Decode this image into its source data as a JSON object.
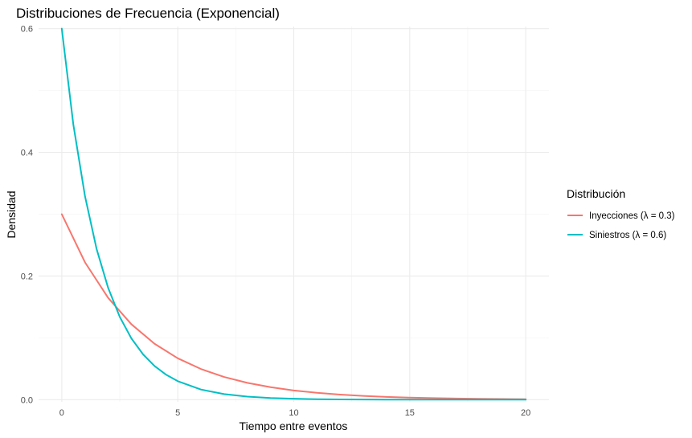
{
  "chart_data": {
    "type": "line",
    "title": "Distribuciones de Frecuencia (Exponencial)",
    "xlabel": "Tiempo entre eventos",
    "ylabel": "Densidad",
    "xlim": [
      -1,
      21
    ],
    "ylim": [
      -0.0035,
      0.6035
    ],
    "x_ticks": [
      0,
      5,
      10,
      15,
      20
    ],
    "x_tick_labels": [
      "0",
      "5",
      "10",
      "15",
      "20"
    ],
    "y_ticks": [
      0.0,
      0.2,
      0.4,
      0.6
    ],
    "y_tick_labels": [
      "0.0",
      "0.2",
      "0.4",
      "0.6"
    ],
    "grid": true,
    "legend": {
      "title": "Distribución",
      "placement": "right"
    },
    "series": [
      {
        "name": "Inyecciones (λ = 0.3)",
        "color": "#F8766D",
        "x": [
          0,
          1,
          2,
          3,
          4,
          5,
          6,
          7,
          8,
          9,
          10,
          11,
          12,
          13,
          14,
          15,
          16,
          17,
          18,
          19,
          20
        ],
        "y": [
          0.3,
          0.2222,
          0.1646,
          0.122,
          0.0904,
          0.0669,
          0.0496,
          0.0367,
          0.0272,
          0.0202,
          0.0149,
          0.0111,
          0.0082,
          0.0061,
          0.0045,
          0.0033,
          0.0025,
          0.0018,
          0.0014,
          0.001,
          0.0007
        ]
      },
      {
        "name": "Siniestros (λ = 0.6)",
        "color": "#00BFC4",
        "x": [
          0,
          0.5,
          1,
          1.5,
          2,
          2.5,
          3,
          3.5,
          4,
          4.5,
          5,
          6,
          7,
          8,
          9,
          10,
          11,
          12,
          13,
          14,
          15,
          16,
          17,
          18,
          19,
          20
        ],
        "y": [
          0.6,
          0.4445,
          0.3293,
          0.2439,
          0.1807,
          0.1339,
          0.0992,
          0.0735,
          0.0544,
          0.0403,
          0.0299,
          0.0164,
          0.009,
          0.0049,
          0.0027,
          0.0015,
          0.0008,
          0.0004,
          0.0002,
          0.0001,
          0.0001,
          0.0,
          0.0,
          0.0,
          0.0,
          0.0
        ]
      }
    ]
  }
}
